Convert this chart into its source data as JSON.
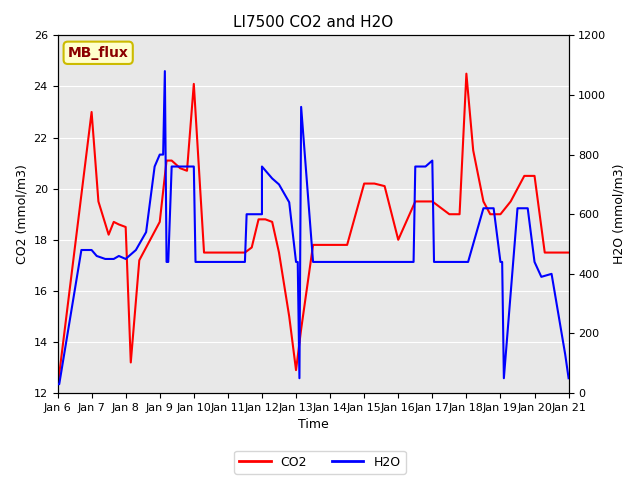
{
  "title": "LI7500 CO2 and H2O",
  "xlabel": "Time",
  "ylabel_left": "CO2 (mmol/m3)",
  "ylabel_right": "H2O (mmol/m3)",
  "annotation": "MB_flux",
  "xlim": [
    0,
    15
  ],
  "ylim_left": [
    12,
    26
  ],
  "ylim_right": [
    0,
    1200
  ],
  "xtick_labels": [
    "Jan 6",
    "Jan 7",
    "Jan 8",
    "Jan 9",
    "Jan 10",
    "Jan 11",
    "Jan 12",
    "Jan 13",
    "Jan 14",
    "Jan 15",
    "Jan 16",
    "Jan 17",
    "Jan 18",
    "Jan 19",
    "Jan 20",
    "Jan 21"
  ],
  "co2_x": [
    0.0,
    1.0,
    1.2,
    1.5,
    1.65,
    1.8,
    2.0,
    2.15,
    2.4,
    3.0,
    3.2,
    3.35,
    3.6,
    3.8,
    4.0,
    4.3,
    4.5,
    5.0,
    5.5,
    5.7,
    5.9,
    6.1,
    6.3,
    6.5,
    6.8,
    7.0,
    7.15,
    7.5,
    8.0,
    8.5,
    9.0,
    9.3,
    9.6,
    10.0,
    10.5,
    11.0,
    11.5,
    11.8,
    12.0,
    12.2,
    12.5,
    12.7,
    12.85,
    13.0,
    13.3,
    13.7,
    14.0,
    14.3,
    14.6,
    15.0
  ],
  "co2_y": [
    12.2,
    23.0,
    19.5,
    18.2,
    18.7,
    18.6,
    18.5,
    13.2,
    17.2,
    18.7,
    21.1,
    21.1,
    20.8,
    20.7,
    24.1,
    17.5,
    17.5,
    17.5,
    17.5,
    17.7,
    18.8,
    18.8,
    18.7,
    17.5,
    15.0,
    12.9,
    14.5,
    17.8,
    17.8,
    17.8,
    20.2,
    20.2,
    20.1,
    18.0,
    19.5,
    19.5,
    19.0,
    19.0,
    24.5,
    21.5,
    19.5,
    19.0,
    19.0,
    19.0,
    19.5,
    20.5,
    20.5,
    17.5,
    17.5,
    17.5
  ],
  "h2o_x": [
    0.0,
    0.05,
    0.7,
    1.0,
    1.15,
    1.4,
    1.65,
    1.8,
    2.0,
    2.3,
    2.6,
    2.85,
    3.0,
    3.1,
    3.15,
    3.2,
    3.25,
    3.35,
    3.5,
    3.65,
    3.8,
    4.0,
    4.05,
    4.3,
    5.0,
    5.5,
    5.55,
    5.7,
    6.0,
    6.0,
    6.3,
    6.5,
    6.8,
    7.0,
    7.05,
    7.1,
    7.15,
    7.5,
    8.0,
    8.5,
    9.0,
    9.5,
    10.0,
    10.45,
    10.5,
    10.8,
    11.0,
    11.05,
    11.5,
    12.0,
    12.05,
    12.5,
    12.8,
    13.0,
    13.05,
    13.1,
    13.5,
    13.8,
    14.0,
    14.2,
    14.5,
    14.9,
    15.0
  ],
  "h2o_y": [
    30,
    30,
    480,
    480,
    460,
    450,
    450,
    460,
    450,
    480,
    540,
    760,
    800,
    800,
    1080,
    440,
    440,
    760,
    760,
    760,
    760,
    760,
    440,
    440,
    440,
    440,
    600,
    600,
    600,
    760,
    720,
    700,
    640,
    440,
    440,
    50,
    960,
    440,
    440,
    440,
    440,
    440,
    440,
    440,
    760,
    760,
    780,
    440,
    440,
    440,
    440,
    620,
    620,
    440,
    440,
    50,
    620,
    620,
    440,
    390,
    400,
    130,
    50
  ],
  "legend_entries": [
    "CO2",
    "H2O"
  ],
  "co2_color": "red",
  "h2o_color": "blue",
  "title_fontsize": 11,
  "axis_label_fontsize": 9,
  "tick_fontsize": 8,
  "legend_fontsize": 9,
  "annotation_fontsize": 10,
  "linewidth": 1.5,
  "bg_color": "#e8e8e8",
  "grid_color": "white",
  "annotation_facecolor": "#ffffcc",
  "annotation_edgecolor": "#ccbb00",
  "annotation_textcolor": "#8b0000"
}
